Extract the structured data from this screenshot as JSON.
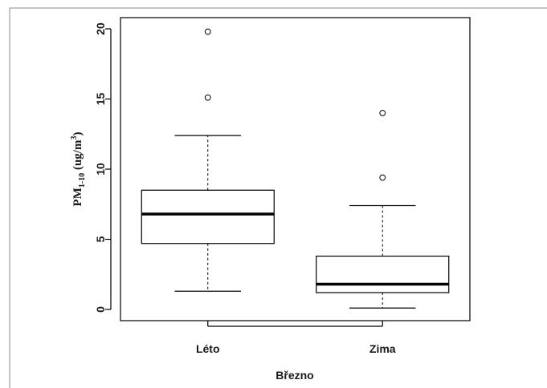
{
  "chart_data": {
    "type": "boxplot",
    "title": "",
    "xlabel": "Březno",
    "ylabel": {
      "main": "PM",
      "subscript": "1-10",
      "unit_prefix": " (ug/m",
      "unit_superscript": "3",
      "unit_suffix": ")"
    },
    "ylim": [
      -0.8,
      20.8
    ],
    "yticks": [
      0,
      5,
      10,
      15,
      20
    ],
    "categories": [
      "Léto",
      "Zima"
    ],
    "boxes": [
      {
        "category": "Léto",
        "whisker_low": 1.3,
        "q1": 4.7,
        "median": 6.8,
        "q3": 8.5,
        "whisker_high": 12.4,
        "outliers": [
          15.1,
          19.8
        ]
      },
      {
        "category": "Zima",
        "whisker_low": 0.1,
        "q1": 1.2,
        "median": 1.8,
        "q3": 3.8,
        "whisker_high": 7.4,
        "outliers": [
          9.4,
          14.0
        ]
      }
    ],
    "grid": false,
    "legend": "none",
    "colors": {
      "line": "#000000",
      "box_fill": "#ffffff",
      "ylabel": "#1a1a1a"
    }
  }
}
